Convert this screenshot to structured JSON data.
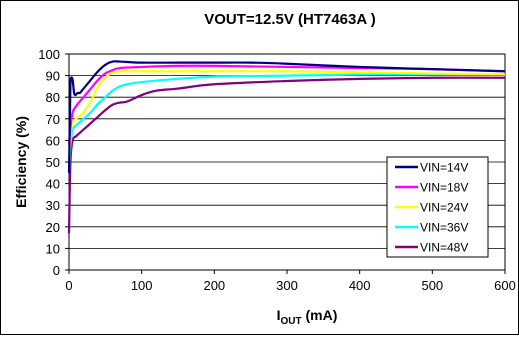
{
  "chart_data": {
    "type": "line",
    "title": "VOUT=12.5V (HT7463A )",
    "xlabel": {
      "main": "I",
      "sub": "OUT",
      "unit": " (mA)"
    },
    "ylabel": "Efficiency (%)",
    "xlim": [
      0,
      600
    ],
    "ylim": [
      0,
      100
    ],
    "xticks": [
      0,
      100,
      200,
      300,
      400,
      500,
      600
    ],
    "yticks": [
      0,
      10,
      20,
      30,
      40,
      50,
      60,
      70,
      80,
      90,
      100
    ],
    "grid": {
      "y": true,
      "x": false
    },
    "legend_position": "lower-right",
    "series": [
      {
        "name": "VIN=14V",
        "color": "#000080",
        "x": [
          0,
          1,
          2,
          3,
          5,
          7,
          9,
          12,
          15,
          20,
          30,
          40,
          50,
          60,
          70,
          100,
          150,
          200,
          250,
          300,
          400,
          500,
          600
        ],
        "y": [
          45,
          66,
          86,
          89,
          88,
          82,
          81,
          82,
          82,
          84,
          88,
          92,
          95,
          96.5,
          96.5,
          96,
          96,
          96,
          96,
          95.5,
          94,
          93,
          92
        ]
      },
      {
        "name": "VIN=18V",
        "color": "#ff00ff",
        "x": [
          0,
          2,
          5,
          10,
          20,
          30,
          40,
          50,
          60,
          70,
          100,
          150,
          200,
          300,
          400,
          500,
          600
        ],
        "y": [
          58,
          66,
          73,
          76,
          80,
          84,
          88,
          91,
          92.5,
          93.5,
          94,
          94.5,
          94.5,
          94,
          93.5,
          93,
          92
        ]
      },
      {
        "name": "VIN=24V",
        "color": "#ffff00",
        "x": [
          0,
          2,
          5,
          10,
          20,
          30,
          40,
          50,
          60,
          70,
          80,
          100,
          150,
          200,
          300,
          400,
          500,
          600
        ],
        "y": [
          50,
          62,
          68,
          70,
          73,
          78,
          85,
          89,
          91.5,
          92,
          92,
          92,
          92,
          92,
          92,
          91.5,
          91,
          90.5
        ]
      },
      {
        "name": "VIN=36V",
        "color": "#00ffff",
        "x": [
          0,
          2,
          5,
          10,
          20,
          30,
          40,
          50,
          60,
          70,
          80,
          100,
          150,
          200,
          300,
          400,
          500,
          600
        ],
        "y": [
          46,
          58,
          65,
          67,
          70,
          73,
          77,
          80,
          83,
          85,
          86,
          87,
          88.5,
          89.5,
          90,
          90.5,
          90.5,
          90.5
        ]
      },
      {
        "name": "VIN=48V",
        "color": "#800080",
        "x": [
          0,
          2,
          5,
          10,
          20,
          30,
          40,
          50,
          60,
          70,
          80,
          100,
          120,
          150,
          200,
          300,
          400,
          500,
          600
        ],
        "y": [
          17,
          50,
          60,
          62,
          65,
          68,
          71,
          74,
          76.5,
          77.5,
          78,
          81,
          83,
          84,
          86,
          87.5,
          88.5,
          89,
          89
        ]
      }
    ]
  }
}
